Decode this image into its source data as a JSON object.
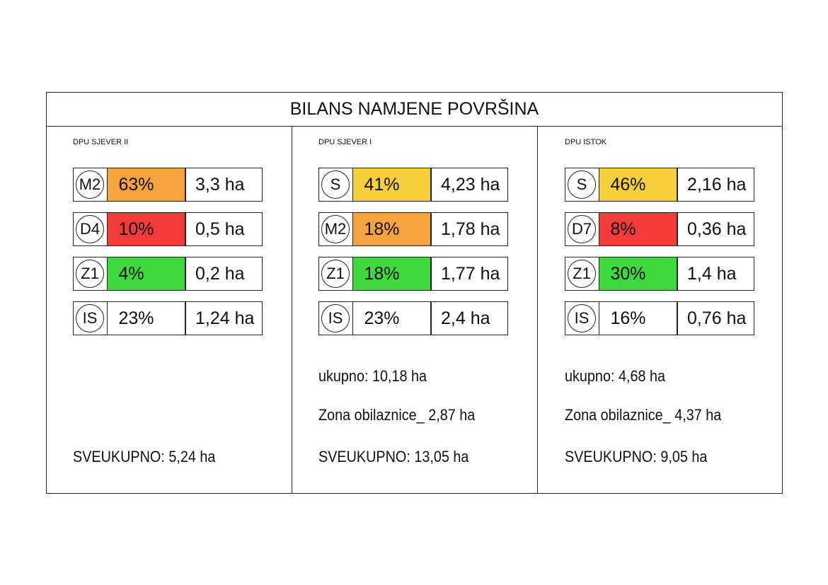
{
  "title": "BILANS NAMJENE POVRŠINA",
  "panels": [
    {
      "name": "DPU SJEVER II",
      "rows": [
        {
          "code": "M2",
          "percent": "63%",
          "area": "3,3 ha",
          "color": "#f4a340"
        },
        {
          "code": "D4",
          "percent": "10%",
          "area": "0,5 ha",
          "color": "#f23c3c"
        },
        {
          "code": "Z1",
          "percent": "4%",
          "area": "0,2 ha",
          "color": "#3fd83f"
        },
        {
          "code": "IS",
          "percent": "23%",
          "area": "1,24 ha"
        }
      ],
      "total": "SVEUKUPNO: 5,24 ha"
    },
    {
      "name": "DPU SJEVER I",
      "rows": [
        {
          "code": "S",
          "percent": "41%",
          "area": "4,23 ha",
          "color": "#f6cf3c"
        },
        {
          "code": "M2",
          "percent": "18%",
          "area": "1,78 ha",
          "color": "#f4a340"
        },
        {
          "code": "Z1",
          "percent": "18%",
          "area": "1,77 ha",
          "color": "#3fd83f"
        },
        {
          "code": "IS",
          "percent": "23%",
          "area": "2,4 ha"
        }
      ],
      "subtotal": "ukupno: 10,18 ha",
      "bypass": "Zona obilaznice_ 2,87 ha",
      "total": "SVEUKUPNO: 13,05 ha"
    },
    {
      "name": "DPU ISTOK",
      "rows": [
        {
          "code": "S",
          "percent": "46%",
          "area": "2,16 ha",
          "color": "#f6cf3c"
        },
        {
          "code": "D7",
          "percent": "8%",
          "area": "0,36 ha",
          "color": "#f23c3c"
        },
        {
          "code": "Z1",
          "percent": "30%",
          "area": "1,4 ha",
          "color": "#3fd83f"
        },
        {
          "code": "IS",
          "percent": "16%",
          "area": "0,76 ha"
        }
      ],
      "subtotal": "ukupno: 4,68 ha",
      "bypass": "Zona obilaznice_ 4,37 ha",
      "total": "SVEUKUPNO: 9,05 ha"
    }
  ]
}
